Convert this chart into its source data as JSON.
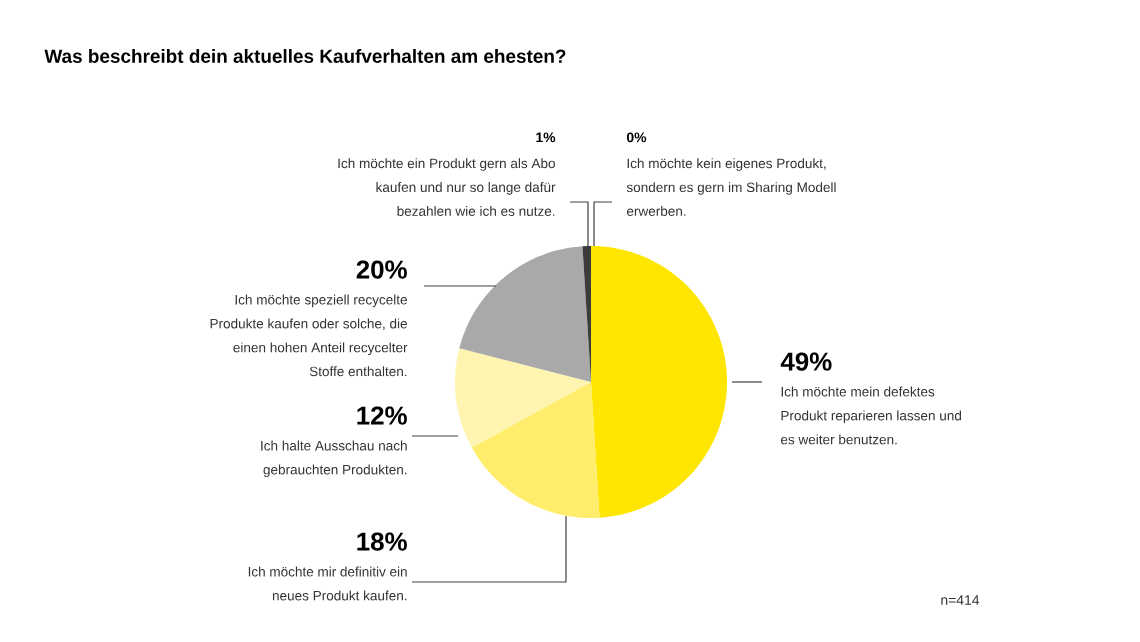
{
  "chart_data": {
    "type": "pie",
    "title": "Was beschreibt dein aktuelles Kaufverhalten am ehesten?",
    "categories": [
      "Ich möchte mein defektes Produkt reparieren lassen und es weiter benutzen.",
      "Ich möchte mir definitiv ein neues Produkt kaufen.",
      "Ich halte Ausschau nach gebrauchten Produkten.",
      "Ich möchte speziell recycelte Produkte kaufen oder solche, die einen hohen Anteil recycelter Stoffe enthalten.",
      "Ich möchte ein Produkt gern als Abo kaufen und nur so lange dafür bezahlen wie ich es nutze.",
      "Ich möchte kein eigenes Produkt, sondern es gern im Sharing Modell erwerben."
    ],
    "values": [
      49,
      18,
      12,
      20,
      1,
      0
    ],
    "value_labels": [
      "49%",
      "18%",
      "12%",
      "20%",
      "1%",
      "0%"
    ],
    "colors": [
      "#ffe600",
      "#ffed6b",
      "#fff5b0",
      "#a9a9a9",
      "#3c3c3c",
      "#222222"
    ],
    "annotations": [
      "n=414"
    ]
  }
}
